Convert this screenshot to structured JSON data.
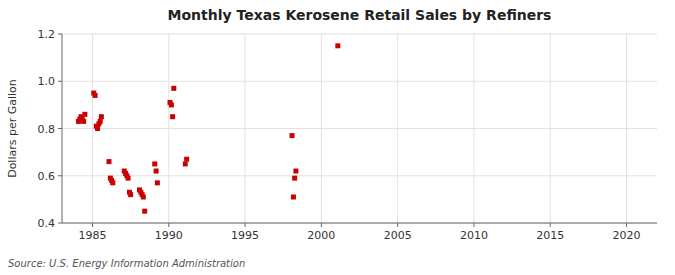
{
  "chart_data": {
    "type": "scatter",
    "title": "Monthly Texas Kerosene Retail Sales by Refiners",
    "y_label": "Dollars per Gallon",
    "annotations": [
      "Source: U.S. Energy Information Administration"
    ],
    "color": "#cc0000",
    "marker": "square",
    "grid": true,
    "xlim": [
      1983,
      2022
    ],
    "ylim": [
      0.4,
      1.2
    ],
    "xticks": [
      1985,
      1990,
      1995,
      2000,
      2005,
      2010,
      2015,
      2020
    ],
    "yticks": [
      0.4,
      0.6,
      0.8,
      {
        "value": 1,
        "label": "1.0"
      },
      1.2
    ],
    "x": [
      1984.08,
      1984.17,
      1984.25,
      1984.33,
      1984.42,
      1984.5,
      1985.08,
      1985.17,
      1985.25,
      1985.33,
      1985.42,
      1985.5,
      1985.58,
      1986.08,
      1986.17,
      1986.25,
      1986.33,
      1987.08,
      1987.17,
      1987.25,
      1987.33,
      1987.42,
      1987.5,
      1988.08,
      1988.17,
      1988.25,
      1988.33,
      1988.42,
      1989.08,
      1989.17,
      1989.25,
      1990.08,
      1990.17,
      1990.25,
      1990.33,
      1991.08,
      1991.17,
      1998.08,
      1998.17,
      1998.25,
      1998.33,
      2001.08
    ],
    "values": [
      0.83,
      0.84,
      0.85,
      0.84,
      0.83,
      0.86,
      0.95,
      0.94,
      0.81,
      0.8,
      0.82,
      0.83,
      0.85,
      0.66,
      0.59,
      0.58,
      0.57,
      0.62,
      0.61,
      0.6,
      0.59,
      0.53,
      0.52,
      0.54,
      0.53,
      0.52,
      0.51,
      0.45,
      0.65,
      0.62,
      0.57,
      0.91,
      0.9,
      0.85,
      0.97,
      0.65,
      0.67,
      0.77,
      0.51,
      0.59,
      0.62,
      1.15
    ]
  }
}
